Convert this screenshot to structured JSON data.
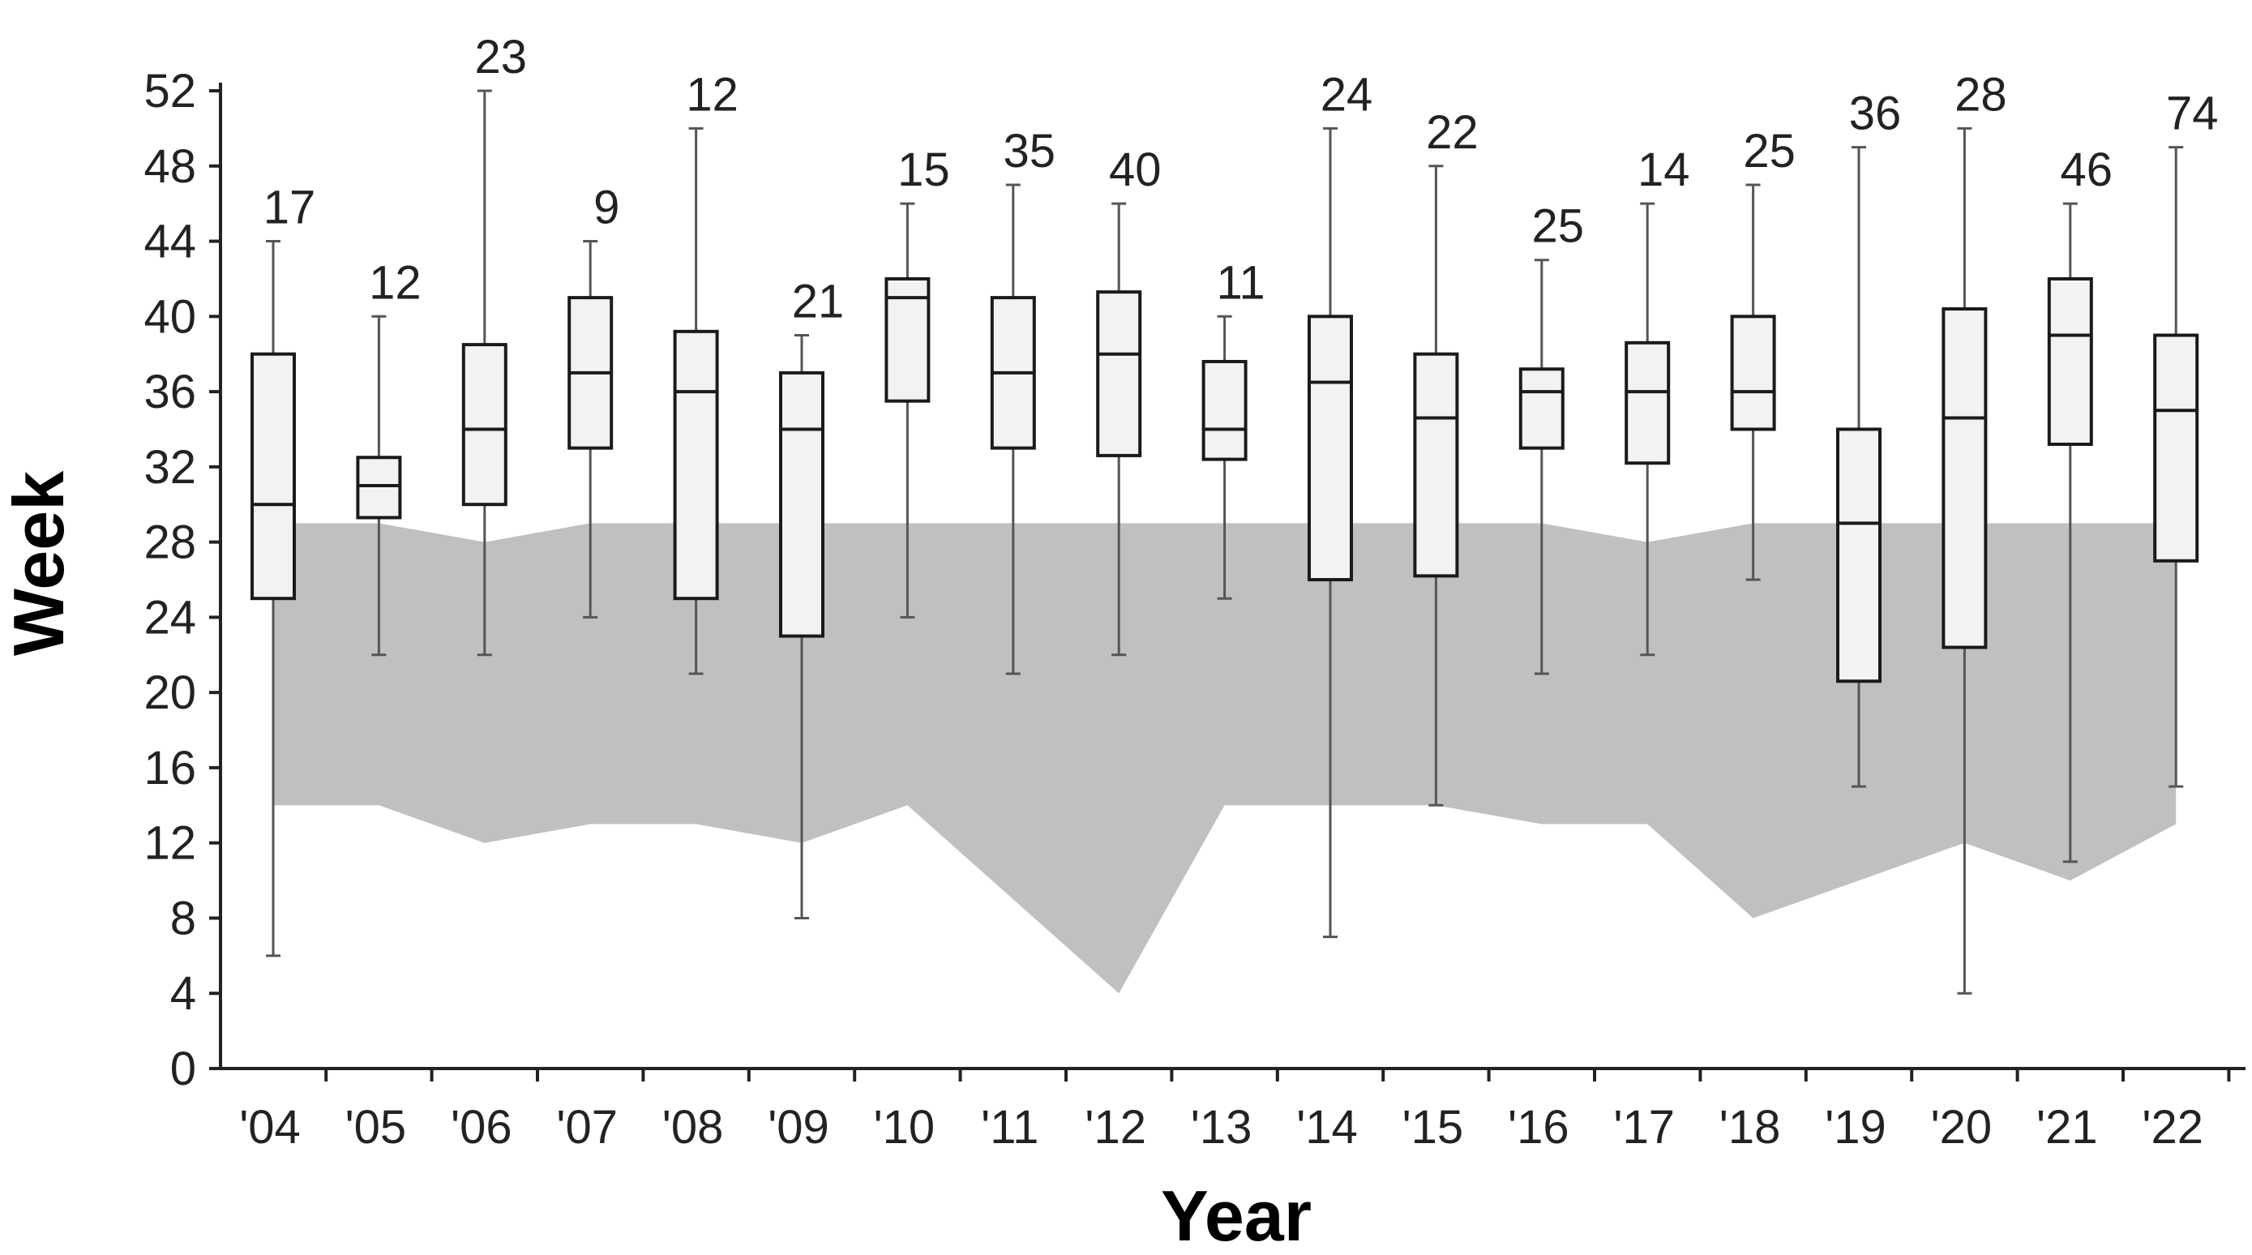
{
  "chart_data": {
    "type": "box",
    "xlabel": "Year",
    "ylabel": "Week",
    "ylim": [
      0,
      52
    ],
    "yticks": [
      0,
      4,
      8,
      12,
      16,
      20,
      24,
      28,
      32,
      36,
      40,
      44,
      48,
      52
    ],
    "categories": [
      "'04",
      "'05",
      "'06",
      "'07",
      "'08",
      "'09",
      "'10",
      "'11",
      "'12",
      "'13",
      "'14",
      "'15",
      "'16",
      "'17",
      "'18",
      "'19",
      "'20",
      "'21",
      "'22"
    ],
    "boxes": [
      {
        "min": 6,
        "q1": 25,
        "median": 30,
        "q3": 38,
        "max": 44,
        "n": "17"
      },
      {
        "min": 22,
        "q1": 29.3,
        "median": 31,
        "q3": 32.5,
        "max": 40,
        "n": "12"
      },
      {
        "min": 22,
        "q1": 30,
        "median": 34,
        "q3": 38.5,
        "max": 52,
        "n": "23"
      },
      {
        "min": 24,
        "q1": 33,
        "median": 37,
        "q3": 41,
        "max": 44,
        "n": "9"
      },
      {
        "min": 21,
        "q1": 25,
        "median": 36,
        "q3": 39.2,
        "max": 50,
        "n": "12"
      },
      {
        "min": 8,
        "q1": 23,
        "median": 34,
        "q3": 37,
        "max": 39,
        "n": "21"
      },
      {
        "min": 24,
        "q1": 35.5,
        "median": 41,
        "q3": 42,
        "max": 46,
        "n": "15"
      },
      {
        "min": 21,
        "q1": 33,
        "median": 37,
        "q3": 41,
        "max": 47,
        "n": "35"
      },
      {
        "min": 22,
        "q1": 32.6,
        "median": 38,
        "q3": 41.3,
        "max": 46,
        "n": "40"
      },
      {
        "min": 25,
        "q1": 32.4,
        "median": 34,
        "q3": 37.6,
        "max": 40,
        "n": "11"
      },
      {
        "min": 7,
        "q1": 26,
        "median": 36.5,
        "q3": 40,
        "max": 50,
        "n": "24"
      },
      {
        "min": 14,
        "q1": 26.2,
        "median": 34.6,
        "q3": 38,
        "max": 48,
        "n": "22"
      },
      {
        "min": 21,
        "q1": 33,
        "median": 36,
        "q3": 37.2,
        "max": 43,
        "n": "25"
      },
      {
        "min": 22,
        "q1": 32.2,
        "median": 36,
        "q3": 38.6,
        "max": 46,
        "n": "14"
      },
      {
        "min": 26,
        "q1": 34,
        "median": 36,
        "q3": 40,
        "max": 47,
        "n": "25"
      },
      {
        "min": 15,
        "q1": 20.6,
        "median": 29,
        "q3": 34,
        "max": 49,
        "n": "36"
      },
      {
        "min": 4,
        "q1": 22.4,
        "median": 34.6,
        "q3": 40.4,
        "max": 50,
        "n": "28"
      },
      {
        "min": 11,
        "q1": 33.2,
        "median": 39,
        "q3": 42,
        "max": 46,
        "n": "46"
      },
      {
        "min": 15,
        "q1": 27,
        "median": 35,
        "q3": 39,
        "max": 49,
        "n": "74"
      }
    ],
    "shaded_band": {
      "upper": [
        29,
        29,
        28,
        29,
        29,
        29,
        29,
        29,
        29,
        29,
        29,
        29,
        29,
        28,
        29,
        29,
        29,
        29,
        29
      ],
      "lower": [
        14,
        14,
        12,
        13,
        13,
        12,
        14,
        9,
        4,
        14,
        14,
        14,
        13,
        13,
        8,
        10,
        12,
        10,
        13
      ]
    },
    "colors": {
      "band": "#c0c0c0",
      "box_fill": "#f2f2f2",
      "box_stroke": "#1a1a1a",
      "whisker": "#555555",
      "axis": "#222222"
    }
  }
}
